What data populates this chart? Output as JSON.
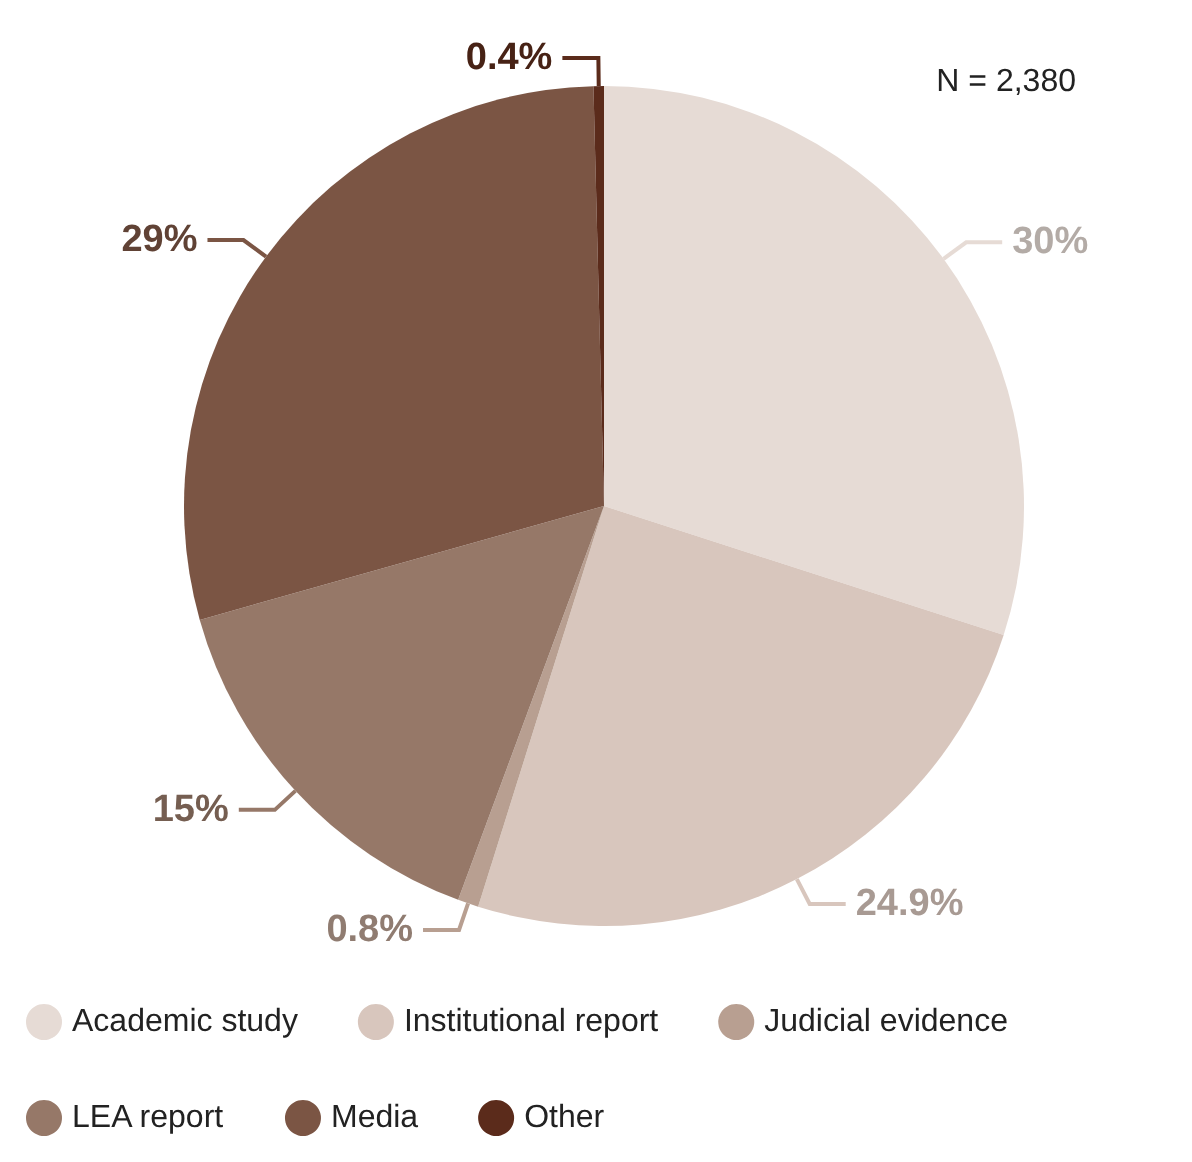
{
  "chart_data": {
    "type": "pie",
    "categories": [
      "Academic study",
      "Institutional report",
      "Judicial evidence",
      "LEA report",
      "Media",
      "Other"
    ],
    "values": [
      30,
      24.9,
      0.8,
      15,
      29,
      0.4
    ],
    "colors": [
      "#e6dbd5",
      "#d8c6bd",
      "#b89f91",
      "#967868",
      "#7b5544",
      "#5b2b1b"
    ],
    "value_labels": [
      "30%",
      "24.9%",
      "0.8%",
      "15%",
      "29%",
      "0.4%"
    ],
    "legend": "bottom",
    "annotations": [
      "N = 2,380"
    ]
  }
}
